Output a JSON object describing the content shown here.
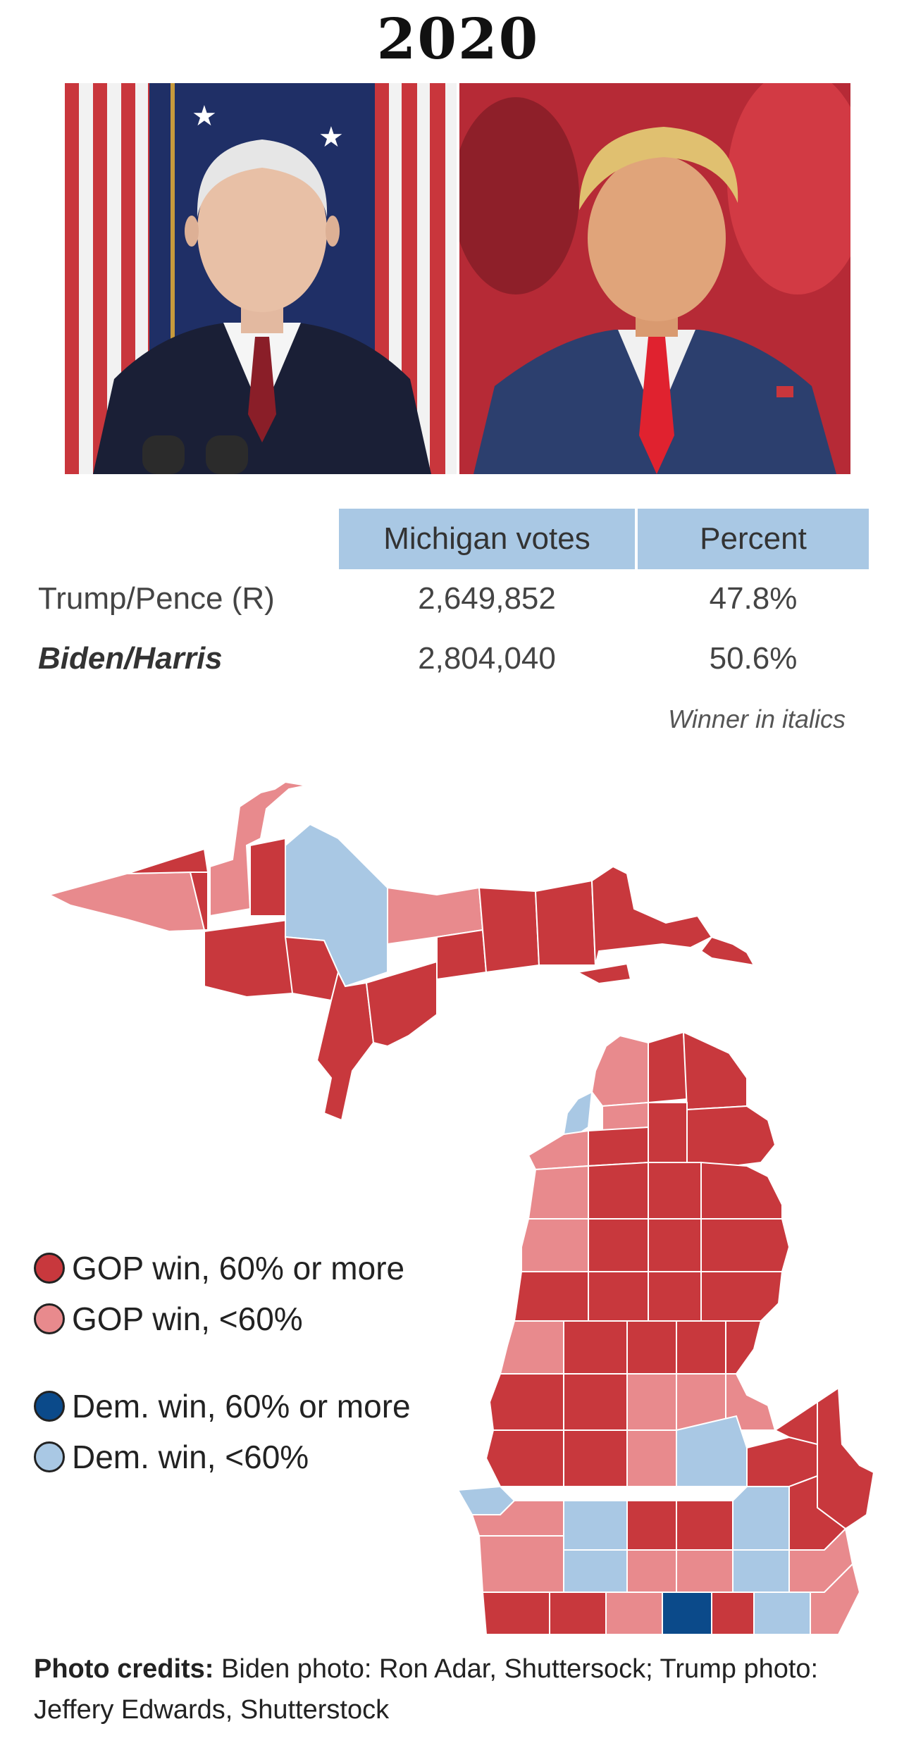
{
  "year": "2020",
  "photos": [
    {
      "subject": "Joe Biden"
    },
    {
      "subject": "Donald Trump"
    }
  ],
  "table": {
    "headers": [
      "Michigan votes",
      "Percent"
    ],
    "rows": [
      {
        "candidate": "Trump/Pence (R)",
        "votes": "2,649,852",
        "percent": "47.8%",
        "winner": false
      },
      {
        "candidate": "Biden/Harris",
        "votes": "2,804,040",
        "percent": "50.6%",
        "winner": true
      }
    ],
    "note": "Winner in italics"
  },
  "legend": [
    {
      "label": "GOP win, 60% or more",
      "color": "#c8383d"
    },
    {
      "label": "GOP win, <60%",
      "color": "#e88a8d"
    },
    {
      "label": "Dem. win, 60% or more",
      "color": "#0b4a8a"
    },
    {
      "label": "Dem. win, <60%",
      "color": "#a9c8e4"
    }
  ],
  "colors": {
    "gop_strong": "#c8383d",
    "gop_lean": "#e88a8d",
    "dem_strong": "#0b4a8a",
    "dem_lean": "#a9c8e4",
    "table_header": "#a9c8e4"
  },
  "credits": {
    "label": "Photo credits:",
    "text": " Biden photo: Ron Adar, Shuttersock; Trump photo: Jeffery Edwards, Shutterstock"
  }
}
